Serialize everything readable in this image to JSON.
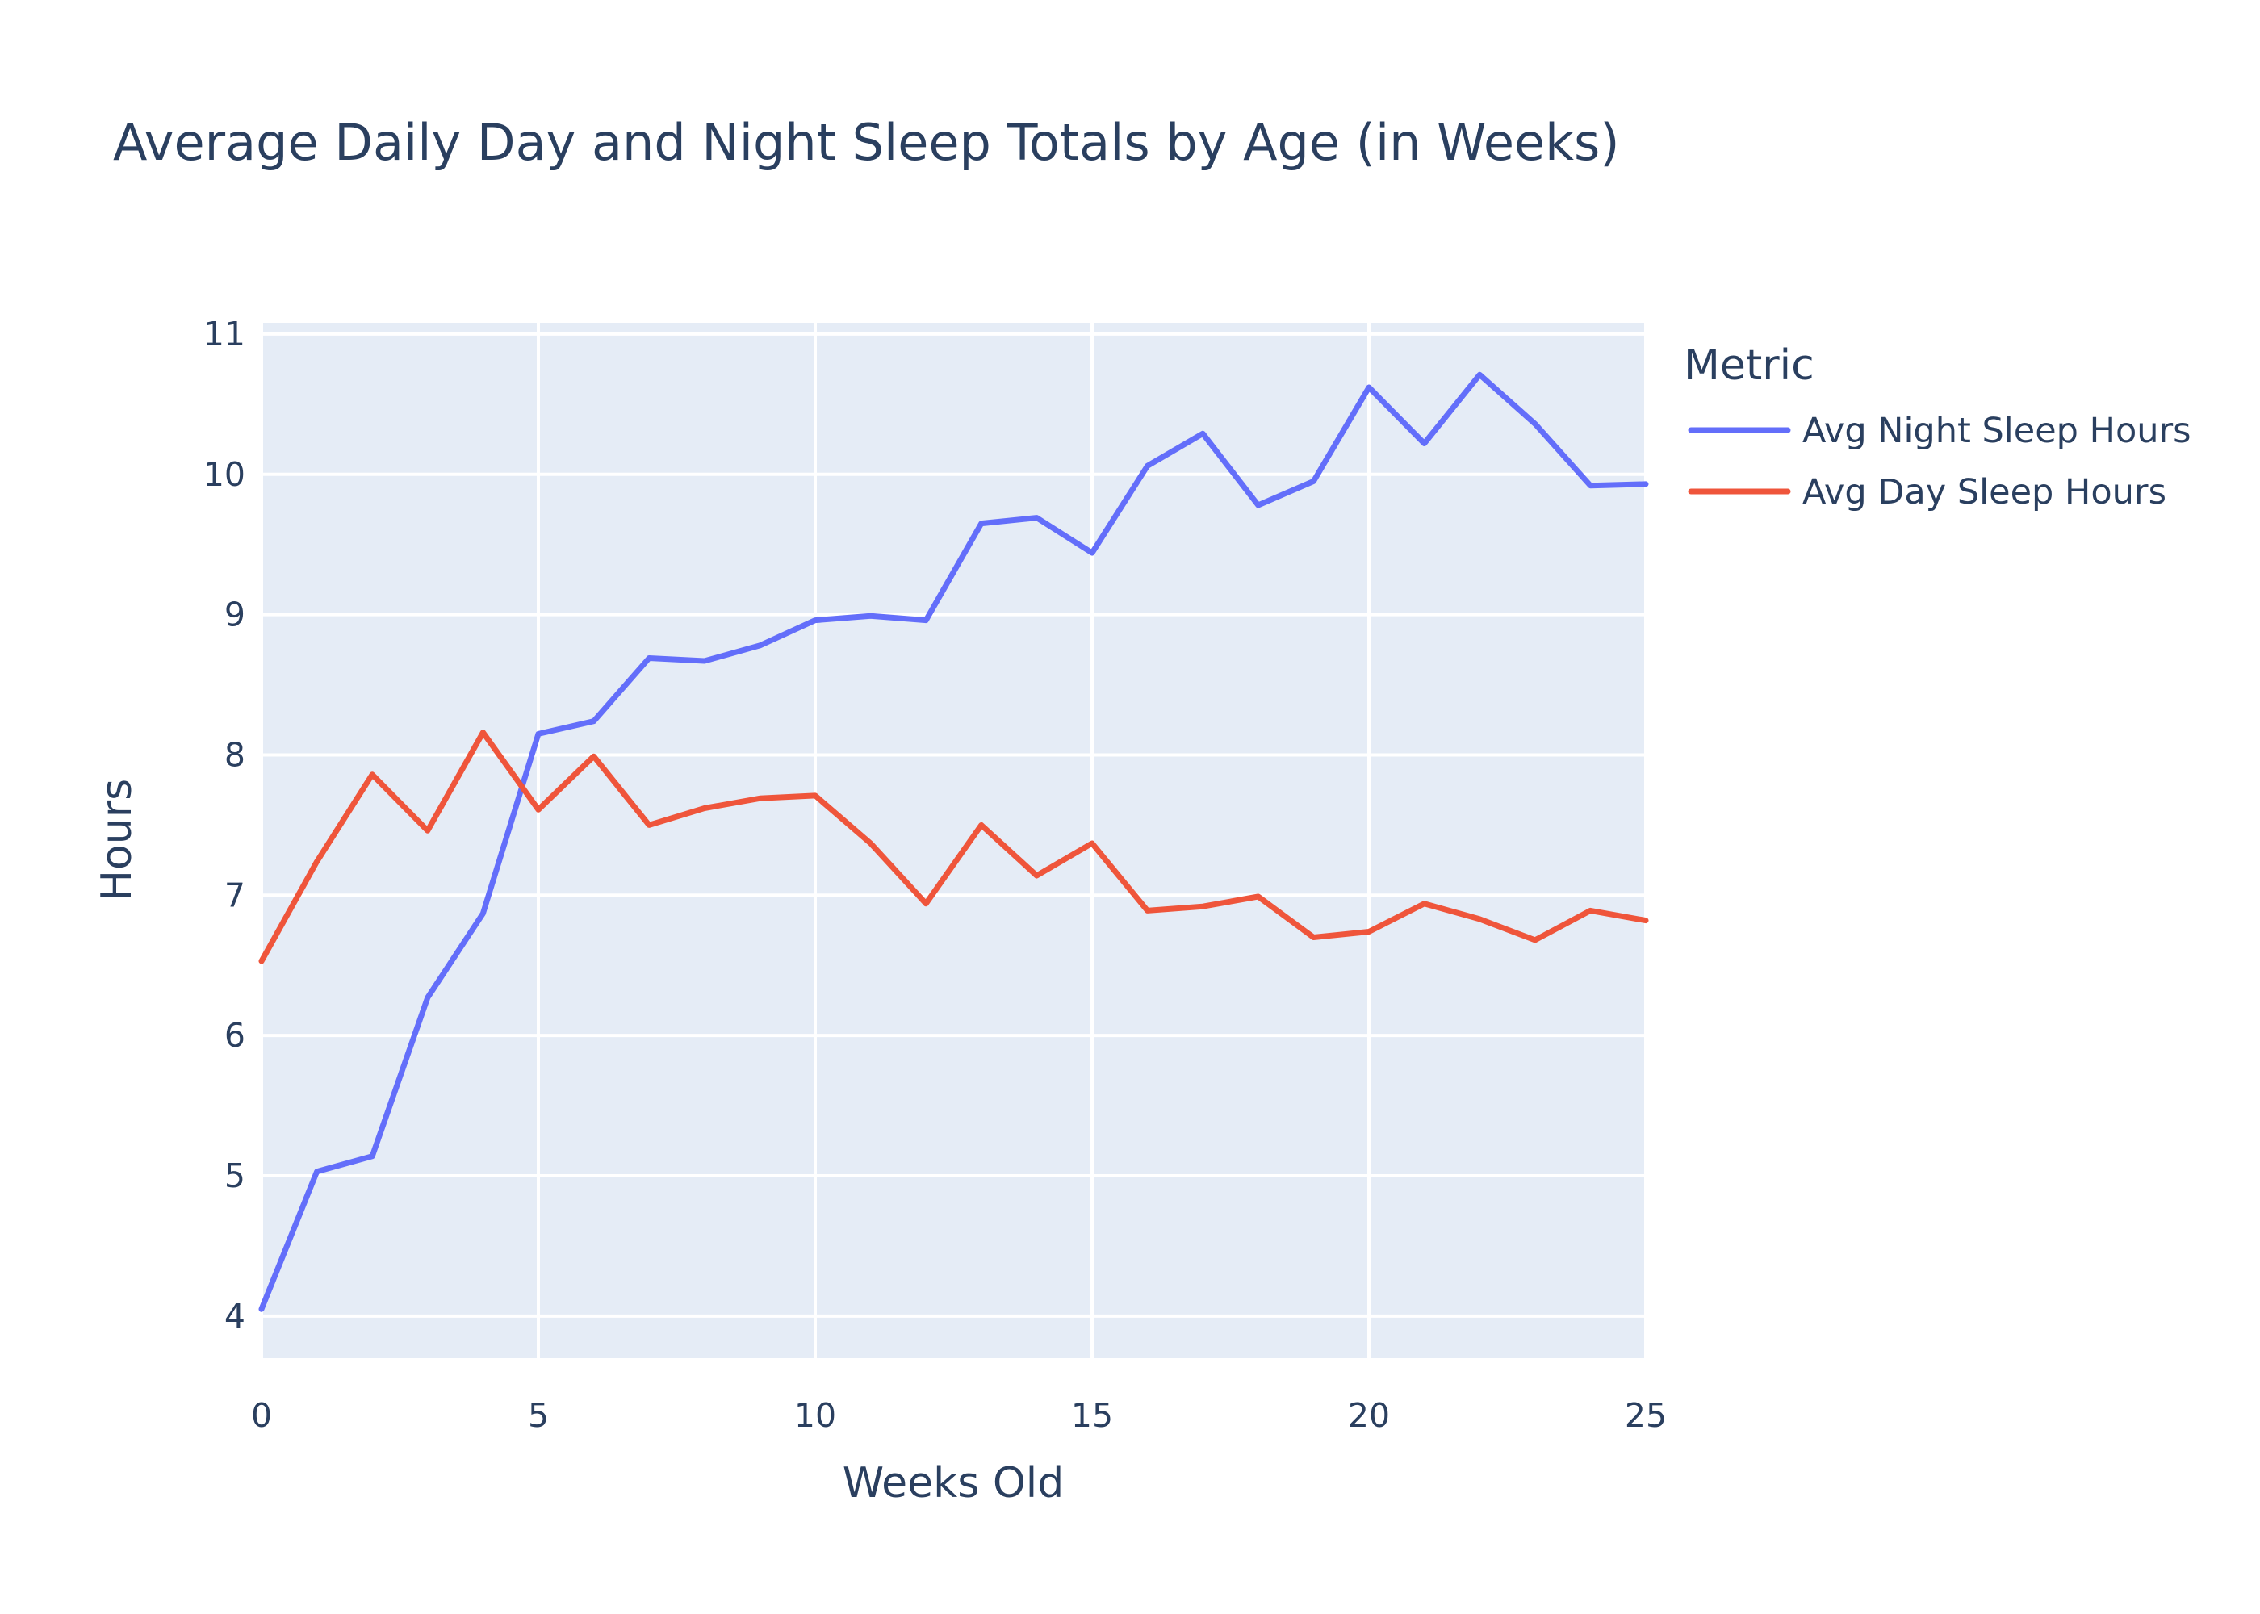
{
  "chart_data": {
    "type": "line",
    "title": "Average Daily Day and Night Sleep Totals by Age (in Weeks)",
    "xlabel": "Weeks Old",
    "ylabel": "Hours",
    "xlim": [
      0,
      25
    ],
    "ylim": [
      3.7,
      11.08
    ],
    "x_ticks": [
      0,
      5,
      10,
      15,
      20,
      25
    ],
    "y_ticks": [
      4,
      5,
      6,
      7,
      8,
      9,
      10,
      11
    ],
    "grid": true,
    "legend": {
      "title": "Metric",
      "position": "right"
    },
    "x": [
      0,
      1,
      2,
      3,
      4,
      5,
      6,
      7,
      8,
      9,
      10,
      11,
      12,
      13,
      14,
      15,
      16,
      17,
      18,
      19,
      20,
      21,
      22,
      23,
      24,
      25
    ],
    "series": [
      {
        "name": "Avg Night Sleep Hours",
        "color": "#636efa",
        "values": [
          4.05,
          5.03,
          5.14,
          6.27,
          6.87,
          8.15,
          8.24,
          8.69,
          8.67,
          8.78,
          8.96,
          8.99,
          8.96,
          9.65,
          9.69,
          9.44,
          10.06,
          10.29,
          9.78,
          9.95,
          10.62,
          10.22,
          10.71,
          10.36,
          9.92,
          9.93
        ]
      },
      {
        "name": "Avg Day Sleep Hours",
        "color": "#ef553b",
        "values": [
          6.53,
          7.24,
          7.86,
          7.46,
          8.16,
          7.61,
          7.99,
          7.5,
          7.62,
          7.69,
          7.71,
          7.37,
          6.94,
          7.5,
          7.14,
          7.37,
          6.89,
          6.92,
          6.99,
          6.7,
          6.74,
          6.94,
          6.83,
          6.68,
          6.89,
          6.82
        ]
      }
    ],
    "plot_background": "#e5ecf6",
    "grid_color": "#ffffff",
    "text_color": "#2a3f5f"
  }
}
